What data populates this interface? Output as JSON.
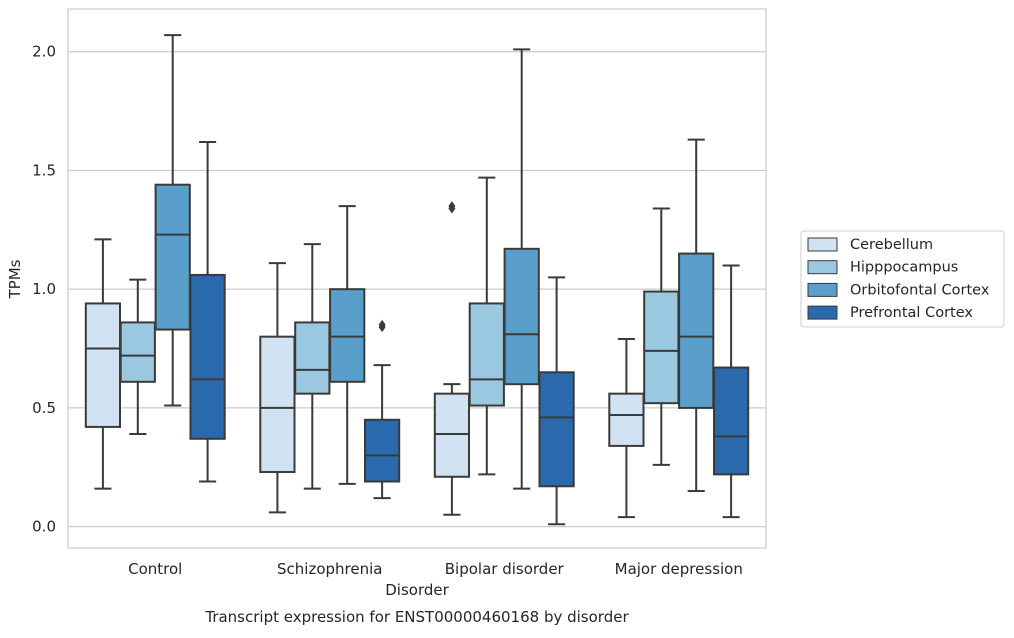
{
  "chart_data": {
    "type": "box",
    "title": "",
    "caption": "Transcript expression for ENST00000460168 by disorder",
    "xlabel": "Disorder",
    "ylabel": "TPMs",
    "ylim": [
      -0.09,
      2.18
    ],
    "yticks": [
      0.0,
      0.5,
      1.0,
      1.5,
      2.0
    ],
    "ytick_labels": [
      "0.0",
      "0.5",
      "1.0",
      "1.5",
      "2.0"
    ],
    "grid": "horizontal",
    "legend_position": "right",
    "categories": [
      "Control",
      "Schizophrenia",
      "Bipolar disorder",
      "Major depression"
    ],
    "series": [
      {
        "name": "Cerebellum",
        "color": "#d1e2f2",
        "boxes": [
          {
            "min": 0.16,
            "q1": 0.42,
            "median": 0.75,
            "q3": 0.94,
            "max": 1.21,
            "outliers": []
          },
          {
            "min": 0.06,
            "q1": 0.23,
            "median": 0.5,
            "q3": 0.8,
            "max": 1.11,
            "outliers": []
          },
          {
            "min": 0.05,
            "q1": 0.21,
            "median": 0.39,
            "q3": 0.56,
            "max": 0.6,
            "outliers": [
              1.34,
              1.35
            ]
          },
          {
            "min": 0.04,
            "q1": 0.34,
            "median": 0.47,
            "q3": 0.56,
            "max": 0.79,
            "outliers": []
          }
        ]
      },
      {
        "name": "Hipppocampus",
        "color": "#9ac8e0",
        "boxes": [
          {
            "min": 0.39,
            "q1": 0.61,
            "median": 0.72,
            "q3": 0.86,
            "max": 1.04,
            "outliers": []
          },
          {
            "min": 0.16,
            "q1": 0.56,
            "median": 0.66,
            "q3": 0.86,
            "max": 1.19,
            "outliers": []
          },
          {
            "min": 0.22,
            "q1": 0.51,
            "median": 0.62,
            "q3": 0.94,
            "max": 1.47,
            "outliers": []
          },
          {
            "min": 0.26,
            "q1": 0.52,
            "median": 0.74,
            "q3": 0.99,
            "max": 1.34,
            "outliers": []
          }
        ]
      },
      {
        "name": "Orbitofontal Cortex",
        "color": "#5a9fcc",
        "boxes": [
          {
            "min": 0.51,
            "q1": 0.83,
            "median": 1.23,
            "q3": 1.44,
            "max": 2.07,
            "outliers": []
          },
          {
            "min": 0.18,
            "q1": 0.61,
            "median": 0.8,
            "q3": 1.0,
            "max": 1.35,
            "outliers": []
          },
          {
            "min": 0.16,
            "q1": 0.6,
            "median": 0.81,
            "q3": 1.17,
            "max": 2.01,
            "outliers": []
          },
          {
            "min": 0.15,
            "q1": 0.5,
            "median": 0.8,
            "q3": 1.15,
            "max": 1.63,
            "outliers": []
          }
        ]
      },
      {
        "name": "Prefrontal Cortex",
        "color": "#2a6aac",
        "boxes": [
          {
            "min": 0.19,
            "q1": 0.37,
            "median": 0.62,
            "q3": 1.06,
            "max": 1.62,
            "outliers": []
          },
          {
            "min": 0.12,
            "q1": 0.19,
            "median": 0.3,
            "q3": 0.45,
            "max": 0.68,
            "outliers": [
              0.84,
              0.85
            ]
          },
          {
            "min": 0.01,
            "q1": 0.17,
            "median": 0.46,
            "q3": 0.65,
            "max": 1.05,
            "outliers": []
          },
          {
            "min": 0.04,
            "q1": 0.22,
            "median": 0.38,
            "q3": 0.67,
            "max": 1.1,
            "outliers": []
          }
        ]
      }
    ]
  }
}
